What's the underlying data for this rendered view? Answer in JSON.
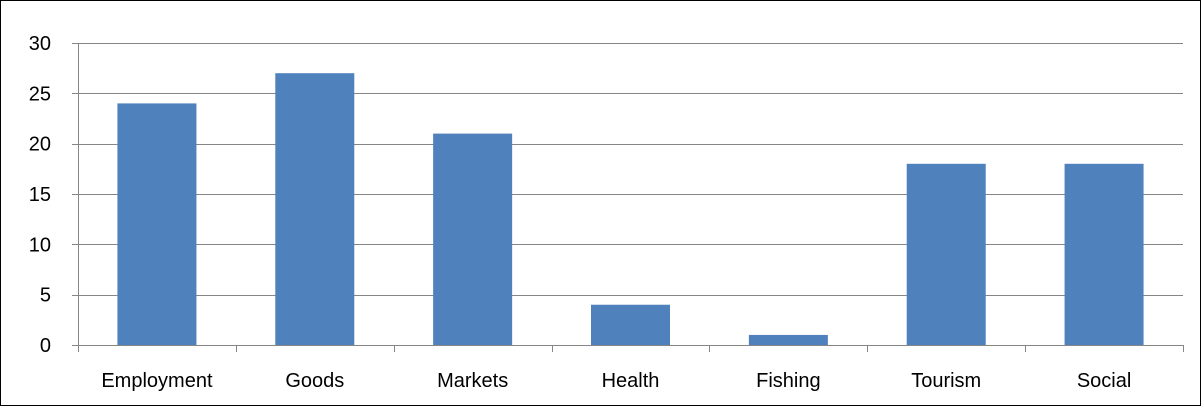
{
  "chart_data": {
    "type": "bar",
    "categories": [
      "Employment",
      "Goods",
      "Markets",
      "Health",
      "Fishing",
      "Tourism",
      "Social"
    ],
    "values": [
      24,
      27,
      21,
      4,
      1,
      18,
      18
    ],
    "title": "",
    "xlabel": "",
    "ylabel": "",
    "ylim": [
      0,
      30
    ],
    "yticks": [
      0,
      5,
      10,
      15,
      20,
      25,
      30
    ],
    "grid": true,
    "legend": "none",
    "colors": {
      "bar": "#4f81bd",
      "bar_edge": "#3a6aa0",
      "grid": "#868686",
      "axis": "#868686"
    }
  }
}
